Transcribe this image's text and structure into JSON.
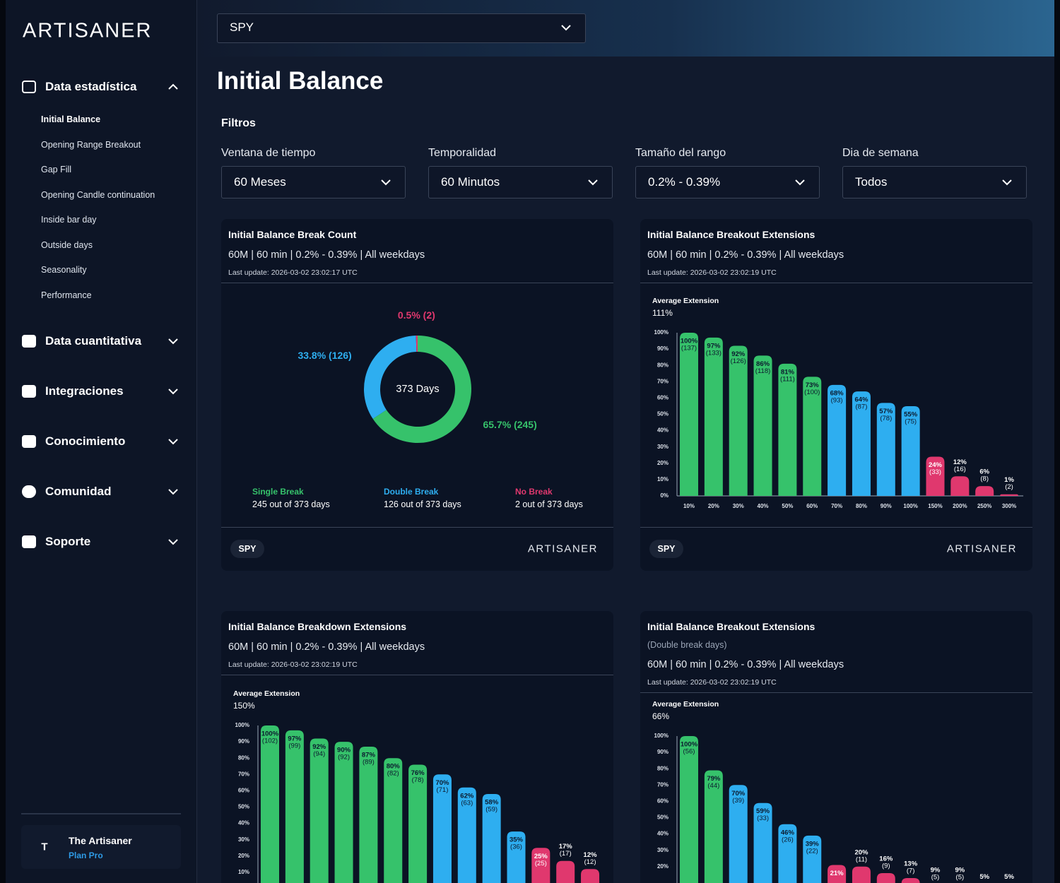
{
  "sidebar": {
    "logo": "ARTISANER",
    "sections": [
      {
        "label": "Data estadística",
        "items": [
          "Initial Balance",
          "Opening Range Breakout",
          "Gap Fill",
          "Opening Candle continuation",
          "Inside bar day",
          "Outside days",
          "Seasonality",
          "Performance"
        ]
      },
      {
        "label": "Data cuantitativa"
      },
      {
        "label": "Integraciones"
      },
      {
        "label": "Conocimiento"
      },
      {
        "label": "Comunidad"
      },
      {
        "label": "Soporte"
      }
    ],
    "user": {
      "initial": "T",
      "name": "The Artisaner",
      "plan": "Plan Pro"
    }
  },
  "ticker": "SPY",
  "title": "Initial Balance",
  "filters_title": "Filtros",
  "filters": [
    {
      "label": "Ventana de tiempo",
      "value": "60 Meses"
    },
    {
      "label": "Temporalidad",
      "value": "60 Minutos"
    },
    {
      "label": "Tamaño del rango",
      "value": "0.2% - 0.39%"
    },
    {
      "label": "Dia de semana",
      "value": "Todos"
    }
  ],
  "cards": [
    {
      "title": "Initial Balance Break Count",
      "subtitle": "60M | 60 min | 0.2% - 0.39% | All weekdays",
      "updated": "Last update: 2026-03-02 23:02:17 UTC",
      "chart": {
        "type": "pie",
        "center_label": "373 Days",
        "categories": [
          "Single Break",
          "Double Break",
          "No Break"
        ],
        "values": [
          65.7,
          33.8,
          0.5
        ],
        "value_labels": [
          "65.7% (245)",
          "33.8% (126)",
          "0.5% (2)"
        ],
        "colors": [
          "#36c26b",
          "#2eaef0",
          "#e0386e"
        ],
        "details": [
          "245 out of 373 days",
          "126 out of 373 days",
          "2 out of 373 days"
        ]
      },
      "footer": {
        "tag": "SPY",
        "brand": "ARTISANER"
      }
    },
    {
      "title": "Initial Balance Breakout Extensions",
      "subtitle": "60M | 60 min | 0.2% - 0.39% | All weekdays",
      "updated": "Last update: 2026-03-02 23:02:19 UTC",
      "chart": {
        "type": "bar",
        "avg_label": "Average Extension",
        "avg_value": "111%",
        "categories": [
          "10%",
          "20%",
          "30%",
          "40%",
          "50%",
          "60%",
          "70%",
          "80%",
          "90%",
          "100%",
          "150%",
          "200%",
          "250%",
          "300%"
        ],
        "values": [
          100,
          97,
          92,
          86,
          81,
          73,
          68,
          64,
          57,
          55,
          24,
          12,
          6,
          1
        ],
        "value_labels": [
          "100%",
          "97%",
          "92%",
          "86%",
          "81%",
          "73%",
          "68%",
          "64%",
          "57%",
          "55%",
          "24%",
          "12%",
          "6%",
          "1%"
        ],
        "count_labels": [
          "(137)",
          "(133)",
          "(126)",
          "(118)",
          "(111)",
          "(100)",
          "(93)",
          "(87)",
          "(78)",
          "(75)",
          "(33)",
          "(16)",
          "(8)",
          "(2)"
        ],
        "colors": [
          "#36c26b",
          "#36c26b",
          "#36c26b",
          "#36c26b",
          "#36c26b",
          "#36c26b",
          "#2eaef0",
          "#2eaef0",
          "#2eaef0",
          "#2eaef0",
          "#e0386e",
          "#e0386e",
          "#e0386e",
          "#e0386e"
        ],
        "ylim": [
          0,
          100
        ],
        "yticks": [
          {
            "value": 0,
            "label": "0%"
          },
          {
            "value": 10,
            "label": "10%"
          },
          {
            "value": 20,
            "label": "20%"
          },
          {
            "value": 30,
            "label": "30%"
          },
          {
            "value": 40,
            "label": "40%"
          },
          {
            "value": 50,
            "label": "50%"
          },
          {
            "value": 60,
            "label": "60%"
          },
          {
            "value": 70,
            "label": "70%"
          },
          {
            "value": 80,
            "label": "80%"
          },
          {
            "value": 90,
            "label": "90%"
          },
          {
            "value": 100,
            "label": "100%"
          }
        ]
      },
      "footer": {
        "tag": "SPY",
        "brand": "ARTISANER"
      }
    },
    {
      "title": "Initial Balance Breakdown Extensions",
      "subtitle": "60M | 60 min | 0.2% - 0.39% | All weekdays",
      "updated": "Last update: 2026-03-02 23:02:19 UTC",
      "chart": {
        "type": "bar",
        "avg_label": "Average Extension",
        "avg_value": "150%",
        "values": [
          100,
          97,
          92,
          90,
          87,
          80,
          76,
          70,
          62,
          58,
          35,
          25,
          17,
          12
        ],
        "value_labels": [
          "100%",
          "97%",
          "92%",
          "90%",
          "87%",
          "80%",
          "76%",
          "70%",
          "62%",
          "58%",
          "35%",
          "25%",
          "17%",
          "12%"
        ],
        "count_labels": [
          "(102)",
          "(99)",
          "(94)",
          "(92)",
          "(89)",
          "(82)",
          "(78)",
          "(71)",
          "(63)",
          "(59)",
          "(36)",
          "(25)",
          "(17)",
          "(12)"
        ],
        "colors": [
          "#36c26b",
          "#36c26b",
          "#36c26b",
          "#36c26b",
          "#36c26b",
          "#36c26b",
          "#36c26b",
          "#2eaef0",
          "#2eaef0",
          "#2eaef0",
          "#2eaef0",
          "#e0386e",
          "#e0386e",
          "#e0386e"
        ],
        "ylim": [
          0,
          100
        ],
        "yticks": [
          {
            "value": 10,
            "label": "10%"
          },
          {
            "value": 20,
            "label": "20%"
          },
          {
            "value": 30,
            "label": "30%"
          },
          {
            "value": 40,
            "label": "40%"
          },
          {
            "value": 50,
            "label": "50%"
          },
          {
            "value": 60,
            "label": "60%"
          },
          {
            "value": 70,
            "label": "70%"
          },
          {
            "value": 80,
            "label": "80%"
          },
          {
            "value": 90,
            "label": "90%"
          },
          {
            "value": 100,
            "label": "100%"
          }
        ]
      }
    },
    {
      "title": "Initial Balance Breakout Extensions",
      "note": "(Double break days)",
      "subtitle": "60M | 60 min | 0.2% - 0.39% | All weekdays",
      "updated": "Last update: 2026-03-02 23:02:19 UTC",
      "chart": {
        "type": "bar",
        "avg_label": "Average Extension",
        "avg_value": "66%",
        "values": [
          100,
          79,
          70,
          59,
          46,
          39,
          21,
          20,
          16,
          13,
          9,
          9,
          5,
          5
        ],
        "value_labels": [
          "100%",
          "79%",
          "70%",
          "59%",
          "46%",
          "39%",
          "21%",
          "20%",
          "16%",
          "13%",
          "9%",
          "9%",
          "5%",
          "5%"
        ],
        "count_labels": [
          "(56)",
          "(44)",
          "(39)",
          "(33)",
          "(26)",
          "(22)",
          null,
          "(11)",
          "(9)",
          "(7)",
          "(5)",
          "(5)",
          null,
          null
        ],
        "colors": [
          "#36c26b",
          "#36c26b",
          "#2eaef0",
          "#2eaef0",
          "#2eaef0",
          "#2eaef0",
          "#e0386e",
          "#e0386e",
          "#e0386e",
          "#e0386e",
          "#e0386e",
          "#e0386e",
          "#e0386e",
          "#e0386e"
        ],
        "ylim": [
          0,
          100
        ],
        "yticks": [
          {
            "value": 20,
            "label": "20%"
          },
          {
            "value": 30,
            "label": "30%"
          },
          {
            "value": 40,
            "label": "40%"
          },
          {
            "value": 50,
            "label": "50%"
          },
          {
            "value": 60,
            "label": "60%"
          },
          {
            "value": 70,
            "label": "70%"
          },
          {
            "value": 80,
            "label": "80%"
          },
          {
            "value": 90,
            "label": "90%"
          },
          {
            "value": 100,
            "label": "100%"
          }
        ]
      }
    }
  ]
}
